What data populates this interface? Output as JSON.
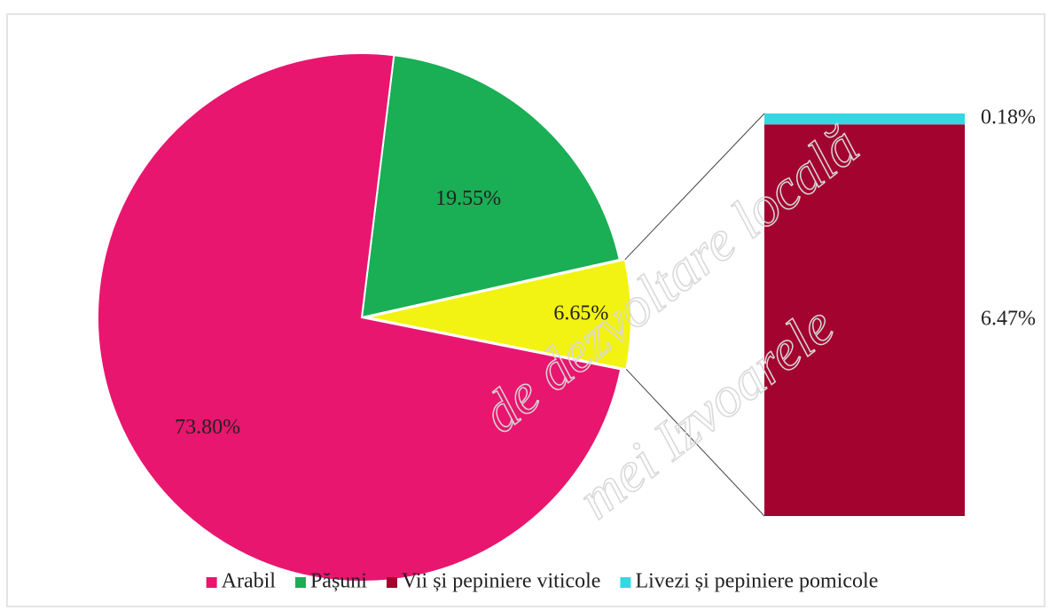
{
  "chart_data": {
    "type": "pie-of-bar",
    "pie": {
      "categories": [
        "Arabil",
        "Pășuni",
        null
      ],
      "values": [
        73.8,
        19.55,
        6.65
      ],
      "value_labels": [
        "73.80%",
        "19.55%",
        "6.65%"
      ],
      "colors": [
        "#e8166e",
        "#1aae55",
        "#f3f313"
      ]
    },
    "bar": {
      "categories": [
        "Vii și pepiniere viticole",
        "Livezi și pepiniere pomicole"
      ],
      "values": [
        6.47,
        0.18
      ],
      "value_labels": [
        "6.47%",
        "0.18%"
      ],
      "colors": [
        "#a2042f",
        "#35d8e2"
      ]
    },
    "legend": "bottom"
  },
  "watermark": [
    "de dezvoltare locală",
    "mei Izvoarele"
  ]
}
